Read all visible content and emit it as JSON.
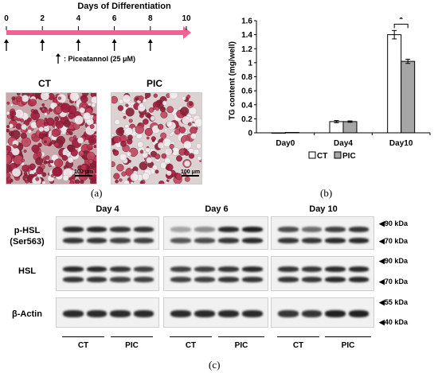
{
  "timeline": {
    "title": "Days of Differentiation",
    "ticks": [
      "0",
      "2",
      "4",
      "6",
      "8",
      "10"
    ],
    "arrow_days": [
      0,
      2,
      4,
      6,
      8
    ],
    "legend": ": Piceatannol (25 μM)"
  },
  "micrographs": [
    {
      "label": "CT",
      "scale": "100 μm"
    },
    {
      "label": "PIC",
      "scale": "100 μm"
    }
  ],
  "panel_labels": {
    "a": "(a)",
    "b": "(b)",
    "c": "(c)"
  },
  "chart_data": {
    "type": "bar",
    "categories": [
      "Day0",
      "Day4",
      "Day10"
    ],
    "series": [
      {
        "name": "CT",
        "values": [
          0.0,
          0.16,
          1.4
        ],
        "errors": [
          0.0,
          0.015,
          0.06
        ],
        "color": "#ffffff"
      },
      {
        "name": "PIC",
        "values": [
          0.005,
          0.16,
          1.02
        ],
        "errors": [
          0.0,
          0.01,
          0.03
        ],
        "color": "#a6a6a6"
      }
    ],
    "ylabel": "TG content (mg/well)",
    "ylim": [
      0,
      1.6
    ],
    "yticks": [
      "0",
      "0.2",
      "0.4",
      "0.6",
      "0.8",
      "1",
      "1.2",
      "1.4",
      "1.6"
    ],
    "significance": "*",
    "legend_position": "bottom"
  },
  "blot": {
    "days": [
      "Day 4",
      "Day 6",
      "Day 10"
    ],
    "rows": [
      {
        "label_line1": "p-HSL",
        "label_line2": "(Ser563)",
        "markers": [
          "90 kDa",
          "70 kDa"
        ]
      },
      {
        "label_line1": "HSL",
        "label_line2": "",
        "markers": [
          "90 kDa",
          "70 kDa"
        ]
      },
      {
        "label_line1": "β-Actin",
        "label_line2": "",
        "markers": [
          "55 kDa",
          "40 kDa"
        ]
      }
    ],
    "groups": [
      "CT",
      "PIC",
      "CT",
      "PIC",
      "CT",
      "PIC"
    ]
  }
}
